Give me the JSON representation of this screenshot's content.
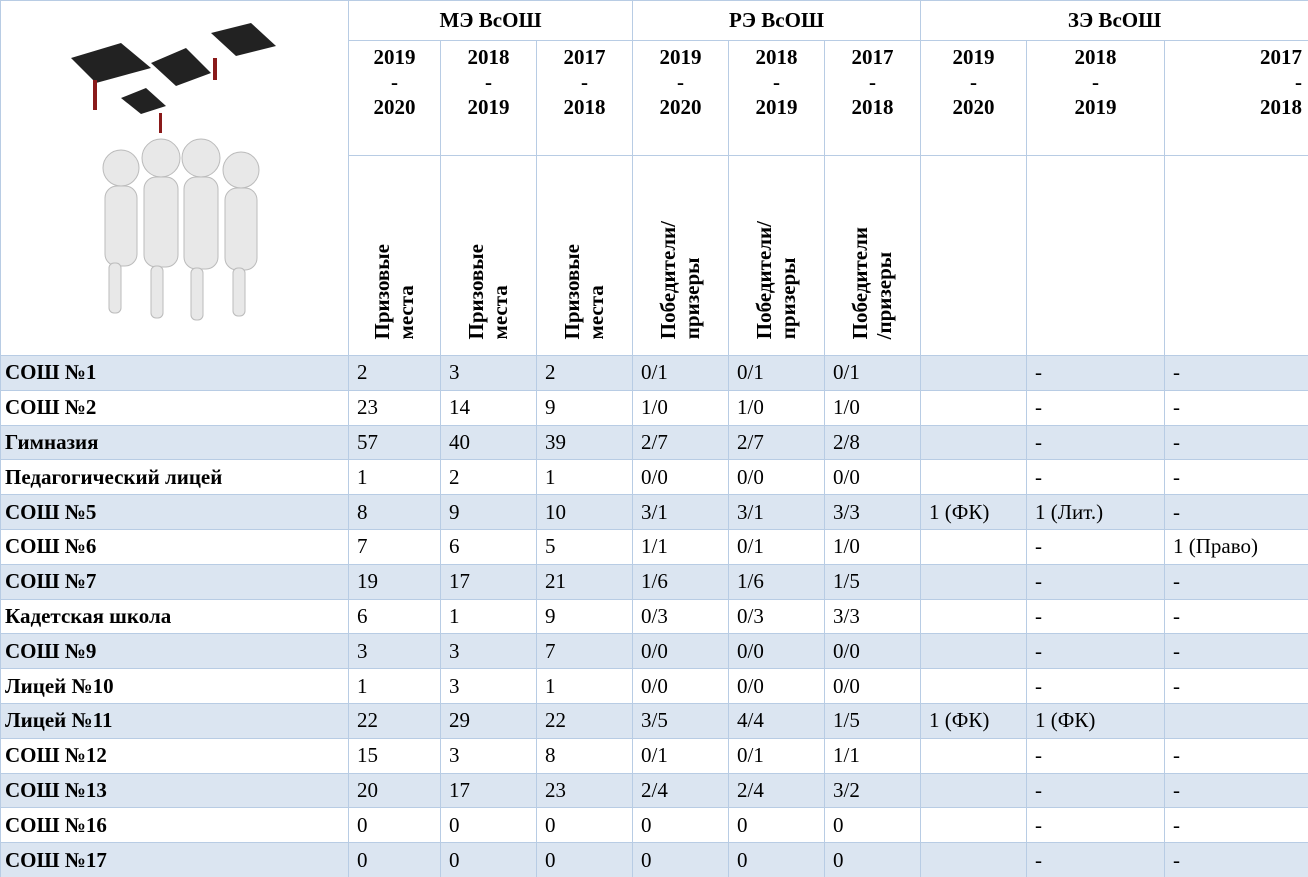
{
  "table": {
    "groups": [
      "МЭ ВсОШ",
      "РЭ ВсОШ",
      "ЗЭ ВсОШ"
    ],
    "years": [
      "2019\n-\n2020",
      "2018\n-\n2019",
      "2017\n-\n2018",
      "2019\n-\n2020",
      "2018\n-\n2019",
      "2017\n-\n2018",
      "2019\n-\n2020",
      "2018\n-\n2019",
      "2017\n-\n2018"
    ],
    "subheaders": [
      "Призовые\nместа",
      "Призовые\nместа",
      "Призовые\nместа",
      "Победители/\nпризеры",
      "Победители/\nпризеры",
      "Победители\n/призеры"
    ],
    "rows": [
      {
        "name": "СОШ №1",
        "cells": [
          2,
          3,
          2,
          "0/1",
          "0/1",
          "0/1",
          null,
          "-",
          "-"
        ]
      },
      {
        "name": "СОШ №2",
        "cells": [
          23,
          14,
          9,
          "1/0",
          "1/0",
          "1/0",
          null,
          "-",
          "-"
        ]
      },
      {
        "name": "Гимназия",
        "cells": [
          57,
          40,
          39,
          "2/7",
          "2/7",
          "2/8",
          null,
          "-",
          "-"
        ]
      },
      {
        "name": "Педагогический лицей",
        "cells": [
          1,
          2,
          1,
          "0/0",
          "0/0",
          "0/0",
          null,
          "-",
          "-"
        ]
      },
      {
        "name": "СОШ №5",
        "cells": [
          8,
          9,
          10,
          "3/1",
          "3/1",
          "3/3",
          "1 (ФК)",
          "1 (Лит.)",
          "-"
        ]
      },
      {
        "name": "СОШ №6",
        "cells": [
          7,
          6,
          5,
          "1/1",
          "0/1",
          "1/0",
          null,
          "-",
          "1 (Право)"
        ]
      },
      {
        "name": "СОШ №7",
        "cells": [
          19,
          17,
          21,
          "1/6",
          "1/6",
          "1/5",
          null,
          "-",
          "-"
        ]
      },
      {
        "name": "Кадетская школа",
        "cells": [
          6,
          1,
          9,
          "0/3",
          "0/3",
          "3/3",
          null,
          "-",
          "-"
        ]
      },
      {
        "name": "СОШ №9",
        "cells": [
          3,
          3,
          7,
          "0/0",
          "0/0",
          "0/0",
          null,
          "-",
          "-"
        ]
      },
      {
        "name": "Лицей №10",
        "cells": [
          1,
          3,
          1,
          "0/0",
          "0/0",
          "0/0",
          null,
          "-",
          "-"
        ]
      },
      {
        "name": "Лицей №11",
        "cells": [
          22,
          29,
          22,
          "3/5",
          "4/4",
          "1/5",
          "1 (ФК)",
          "1 (ФК)",
          null
        ]
      },
      {
        "name": "СОШ №12",
        "cells": [
          15,
          3,
          8,
          "0/1",
          "0/1",
          "1/1",
          null,
          "-",
          "-"
        ]
      },
      {
        "name": "СОШ №13",
        "cells": [
          20,
          17,
          23,
          "2/4",
          "2/4",
          "3/2",
          null,
          "-",
          "-"
        ]
      },
      {
        "name": "СОШ №16",
        "cells": [
          0,
          0,
          0,
          0,
          0,
          0,
          null,
          "-",
          "-"
        ]
      },
      {
        "name": "СОШ №17",
        "cells": [
          0,
          0,
          0,
          0,
          0,
          0,
          null,
          "-",
          "-"
        ]
      }
    ]
  }
}
